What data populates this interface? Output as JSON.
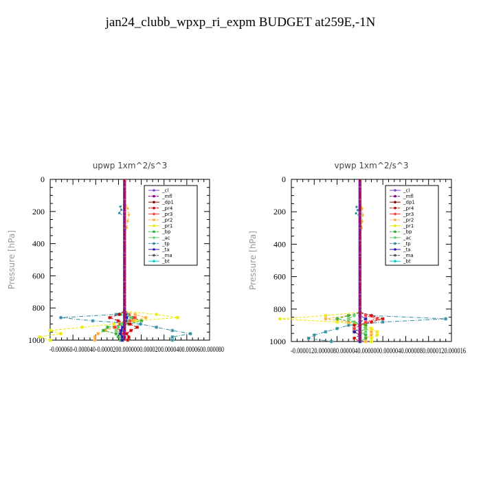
{
  "page": {
    "title": "jan24_clubb_wpxp_ri_expm  BUDGET at259E,-1N"
  },
  "chart_data": [
    {
      "type": "line",
      "title": "upwp   1xm^2/s^3",
      "ylabel": "Pressure [hPa]",
      "ylim": [
        1000,
        0
      ],
      "y_ticks": [
        "0",
        "200",
        "400",
        "600",
        "800",
        "1000"
      ],
      "x_tick_text": "-0.000060-0.000040-0.0000200.0000000.0000200.0000400.0000600.000080",
      "legend_placement": "top-right",
      "legend": [
        "_cl",
        "_mfl",
        "_dp1",
        "_pr4",
        "_pr3",
        "_pr2",
        "_pr1",
        "_bp",
        "_ac",
        "_tp",
        "_ta",
        "_ma",
        "_bt"
      ],
      "colors": [
        "#7a3fbf",
        "#8b008b",
        "#8b0000",
        "#cc0000",
        "#ff3333",
        "#ffaa33",
        "#e8e800",
        "#33aa33",
        "#66cc66",
        "#2e8b9e",
        "#1a1aaa",
        "#555555",
        "#00cccc"
      ],
      "pressure": [
        820,
        840,
        860,
        880,
        900,
        920,
        940,
        960,
        980,
        1000
      ],
      "series": [
        {
          "name": "_tp",
          "values": [
            0,
            -8e-06,
            -6e-05,
            -3e-05,
            1.5e-05,
            3e-05,
            4.5e-05,
            6.2e-05,
            4.5e-05,
            4.5e-05
          ]
        },
        {
          "name": "_pr1",
          "values": [
            0,
            3e-05,
            5e-05,
            1e-05,
            -1e-05,
            -4e-05,
            -7e-05,
            -6e-05,
            -8e-05,
            -7e-05
          ]
        },
        {
          "name": "_pr2",
          "values": [
            0,
            1e-05,
            2e-05,
            8e-06,
            -4e-06,
            -1e-05,
            -1.8e-05,
            -2.5e-05,
            -2.8e-05,
            -2.8e-05
          ]
        },
        {
          "name": "_bp",
          "values": [
            0,
            -4e-06,
            8e-06,
            1.6e-05,
            4e-06,
            -1.6e-05,
            -2e-05,
            -8e-06,
            -6e-06,
            -4e-06
          ]
        },
        {
          "name": "_pr4",
          "values": [
            0,
            -5e-06,
            -1.4e-05,
            -6e-06,
            5e-06,
            1.2e-05,
            6e-06,
            2e-06,
            4e-06,
            3e-06
          ]
        },
        {
          "name": "_pr3",
          "values": [
            0,
            4e-06,
            1e-05,
            5e-06,
            -4e-06,
            -9e-06,
            -4e-06,
            -2e-06,
            -3e-06,
            -2e-06
          ]
        },
        {
          "name": "_ac",
          "values": [
            0,
            3e-06,
            6e-06,
            3e-06,
            -3e-06,
            -6e-06,
            -8e-06,
            -4e-06,
            -3e-06,
            -2e-06
          ]
        },
        {
          "name": "_ta",
          "values": [
            0,
            1e-06,
            2e-06,
            1e-06,
            0,
            -2e-06,
            -3e-06,
            -4e-06,
            -2e-06,
            -2e-06
          ]
        }
      ],
      "upper_series": [
        {
          "name": "_tp",
          "pressure": [
            150,
            170,
            190,
            210,
            230
          ],
          "values": [
            0,
            -4e-06,
            -3e-06,
            -5e-06,
            0
          ]
        },
        {
          "name": "_pr2",
          "pressure": [
            140,
            180,
            220,
            260,
            300,
            330
          ],
          "values": [
            0,
            3e-06,
            4e-06,
            3e-06,
            2e-06,
            0
          ]
        }
      ],
      "xlim": [
        -7e-05,
        8e-05
      ]
    },
    {
      "type": "line",
      "title": "vpwp   1xm^2/s^3",
      "ylabel": "Pressure [hPa]",
      "ylim": [
        1000,
        0
      ],
      "y_ticks": [
        "0",
        "200",
        "400",
        "600",
        "800",
        "1000"
      ],
      "x_tick_text": "-0.0000120.0000080.0000040.0000000.0000040.0000080.0000120.000016",
      "legend_placement": "top-right",
      "legend": [
        "_cl",
        "_mfl",
        "_dp1",
        "_pr4",
        "_pr3",
        "_pr2",
        "_pr1",
        "_bp",
        "_ac",
        "_tp",
        "_ta",
        "_ma",
        "_bt"
      ],
      "colors": [
        "#7a3fbf",
        "#8b008b",
        "#8b0000",
        "#cc0000",
        "#ff3333",
        "#ffaa33",
        "#e8e800",
        "#33aa33",
        "#66cc66",
        "#2e8b9e",
        "#1a1aaa",
        "#555555",
        "#00cccc"
      ],
      "pressure": [
        820,
        840,
        860,
        880,
        900,
        920,
        940,
        960,
        980,
        1000
      ],
      "series": [
        {
          "name": "_tp",
          "values": [
            0,
            2e-06,
            1.5e-05,
            4e-06,
            -2e-06,
            -4e-06,
            -6e-06,
            -8e-06,
            -9e-06,
            -5e-06
          ]
        },
        {
          "name": "_pr1",
          "values": [
            0,
            -6e-06,
            -1.4e-05,
            -4e-06,
            1e-06,
            2e-06,
            3e-06,
            3e-06,
            2e-06,
            2e-06
          ]
        },
        {
          "name": "_pr2",
          "values": [
            0,
            -2e-06,
            -6e-06,
            -2e-06,
            1e-06,
            1e-06,
            2e-06,
            2e-06,
            1e-06,
            1e-06
          ]
        },
        {
          "name": "_bp",
          "values": [
            0,
            -2e-06,
            -4e-06,
            -1e-06,
            1e-06,
            1e-06,
            0.0,
            1e-06,
            1e-06,
            0.0
          ]
        },
        {
          "name": "_pr4",
          "values": [
            0,
            2e-06,
            4e-06,
            2e-06,
            -1e-06,
            -1e-06,
            -1e-06,
            0.0,
            -1e-06,
            0.0
          ]
        },
        {
          "name": "_pr3",
          "values": [
            0,
            1e-06,
            3e-06,
            1e-06,
            0.0,
            -1e-06,
            0.0,
            0.0,
            0.0,
            0.0
          ]
        },
        {
          "name": "_ac",
          "values": [
            0,
            -1e-06,
            -2e-06,
            -1e-06,
            0.0,
            1e-06,
            1e-06,
            0.0,
            0.0,
            0.0
          ]
        },
        {
          "name": "_ta",
          "values": [
            0,
            0.0,
            1e-06,
            0.0,
            0.0,
            0.0,
            -1e-06,
            0.0,
            0.0,
            0.0
          ]
        }
      ],
      "upper_series": [
        {
          "name": "_tp",
          "pressure": [
            150,
            170,
            190,
            210,
            230
          ],
          "values": [
            0,
            -6e-07,
            -4e-07,
            -7e-07,
            0
          ]
        },
        {
          "name": "_pr2",
          "pressure": [
            140,
            180,
            220,
            260,
            300,
            330
          ],
          "values": [
            0,
            4e-07,
            5e-07,
            4e-07,
            3e-07,
            0
          ]
        }
      ],
      "xlim": [
        -1.2e-05,
        1.6e-05
      ]
    }
  ]
}
